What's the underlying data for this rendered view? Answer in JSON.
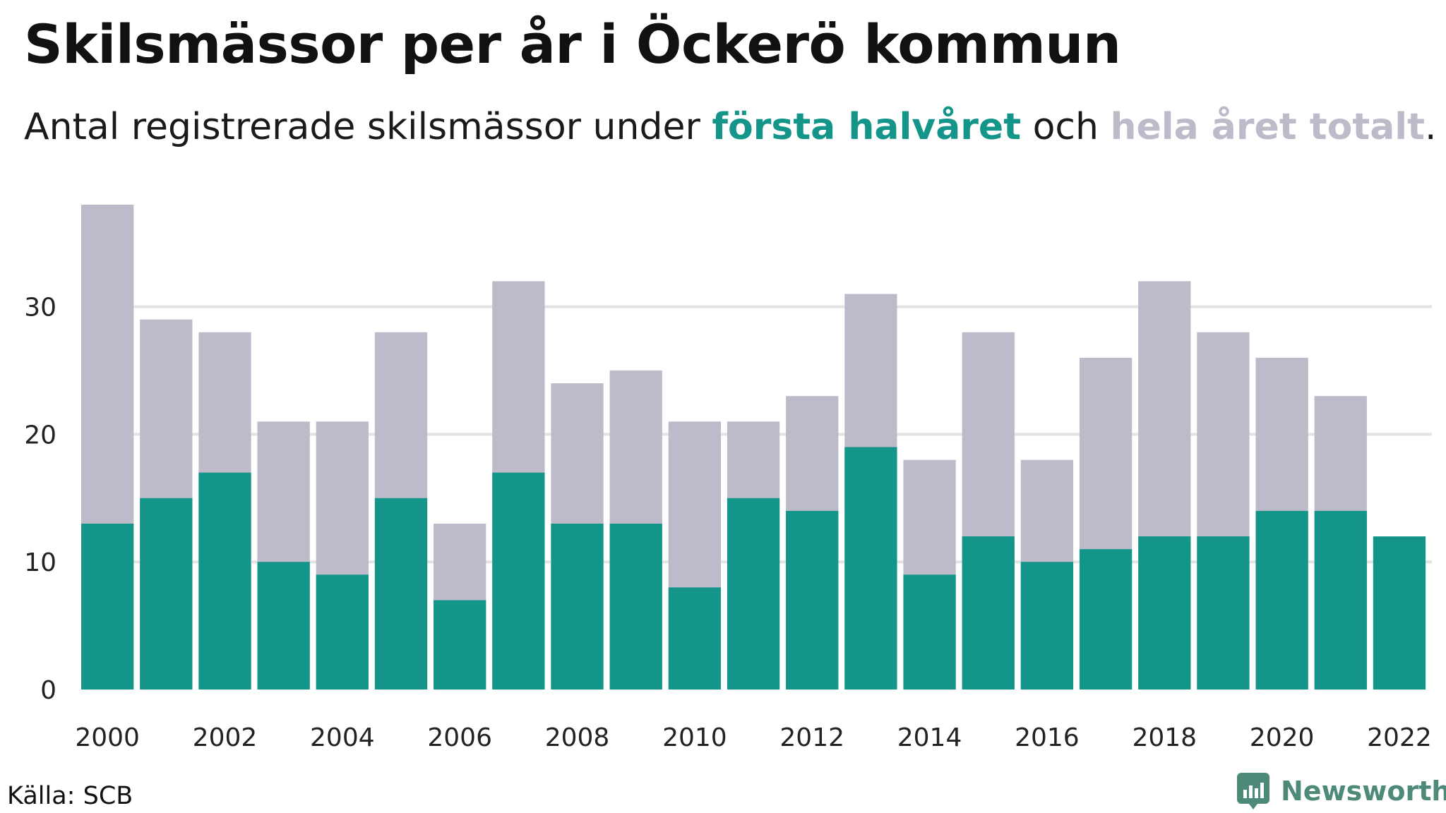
{
  "header": {
    "title": "Skilsmässor per år i Öckerö kommun",
    "subtitle_prefix": "Antal registrerade skilsmässor under ",
    "subtitle_first": "första halvåret",
    "subtitle_mid": " och ",
    "subtitle_total": "hela året totalt",
    "subtitle_suffix": "."
  },
  "footer": {
    "source": "Källa: SCB",
    "logo_text": "Newsworthy"
  },
  "colors": {
    "first_half": "#14958a",
    "full_year": "#bdbbc9",
    "grid": "#e3e3e3",
    "logo": "#4d8a7a"
  },
  "chart_data": {
    "type": "bar",
    "x": [
      2000,
      2001,
      2002,
      2003,
      2004,
      2005,
      2006,
      2007,
      2008,
      2009,
      2010,
      2011,
      2012,
      2013,
      2014,
      2015,
      2016,
      2017,
      2018,
      2019,
      2020,
      2021,
      2022
    ],
    "series": [
      {
        "name": "hela året totalt",
        "values": [
          38,
          29,
          28,
          21,
          21,
          28,
          13,
          32,
          24,
          25,
          21,
          21,
          23,
          31,
          18,
          28,
          18,
          26,
          32,
          28,
          26,
          23,
          null
        ]
      },
      {
        "name": "första halvåret",
        "values": [
          13,
          15,
          17,
          10,
          9,
          15,
          7,
          17,
          13,
          13,
          8,
          15,
          14,
          19,
          9,
          12,
          10,
          11,
          12,
          12,
          14,
          14,
          12
        ]
      }
    ],
    "x_tick_labels": [
      "2000",
      "2002",
      "2004",
      "2006",
      "2008",
      "2010",
      "2012",
      "2014",
      "2016",
      "2018",
      "2020",
      "2022"
    ],
    "y_tick_labels": [
      "0",
      "10",
      "20",
      "30"
    ],
    "y_ticks": [
      0,
      10,
      20,
      30
    ],
    "ylim": [
      0,
      38
    ],
    "grid": true,
    "legend": "in subtitle"
  }
}
